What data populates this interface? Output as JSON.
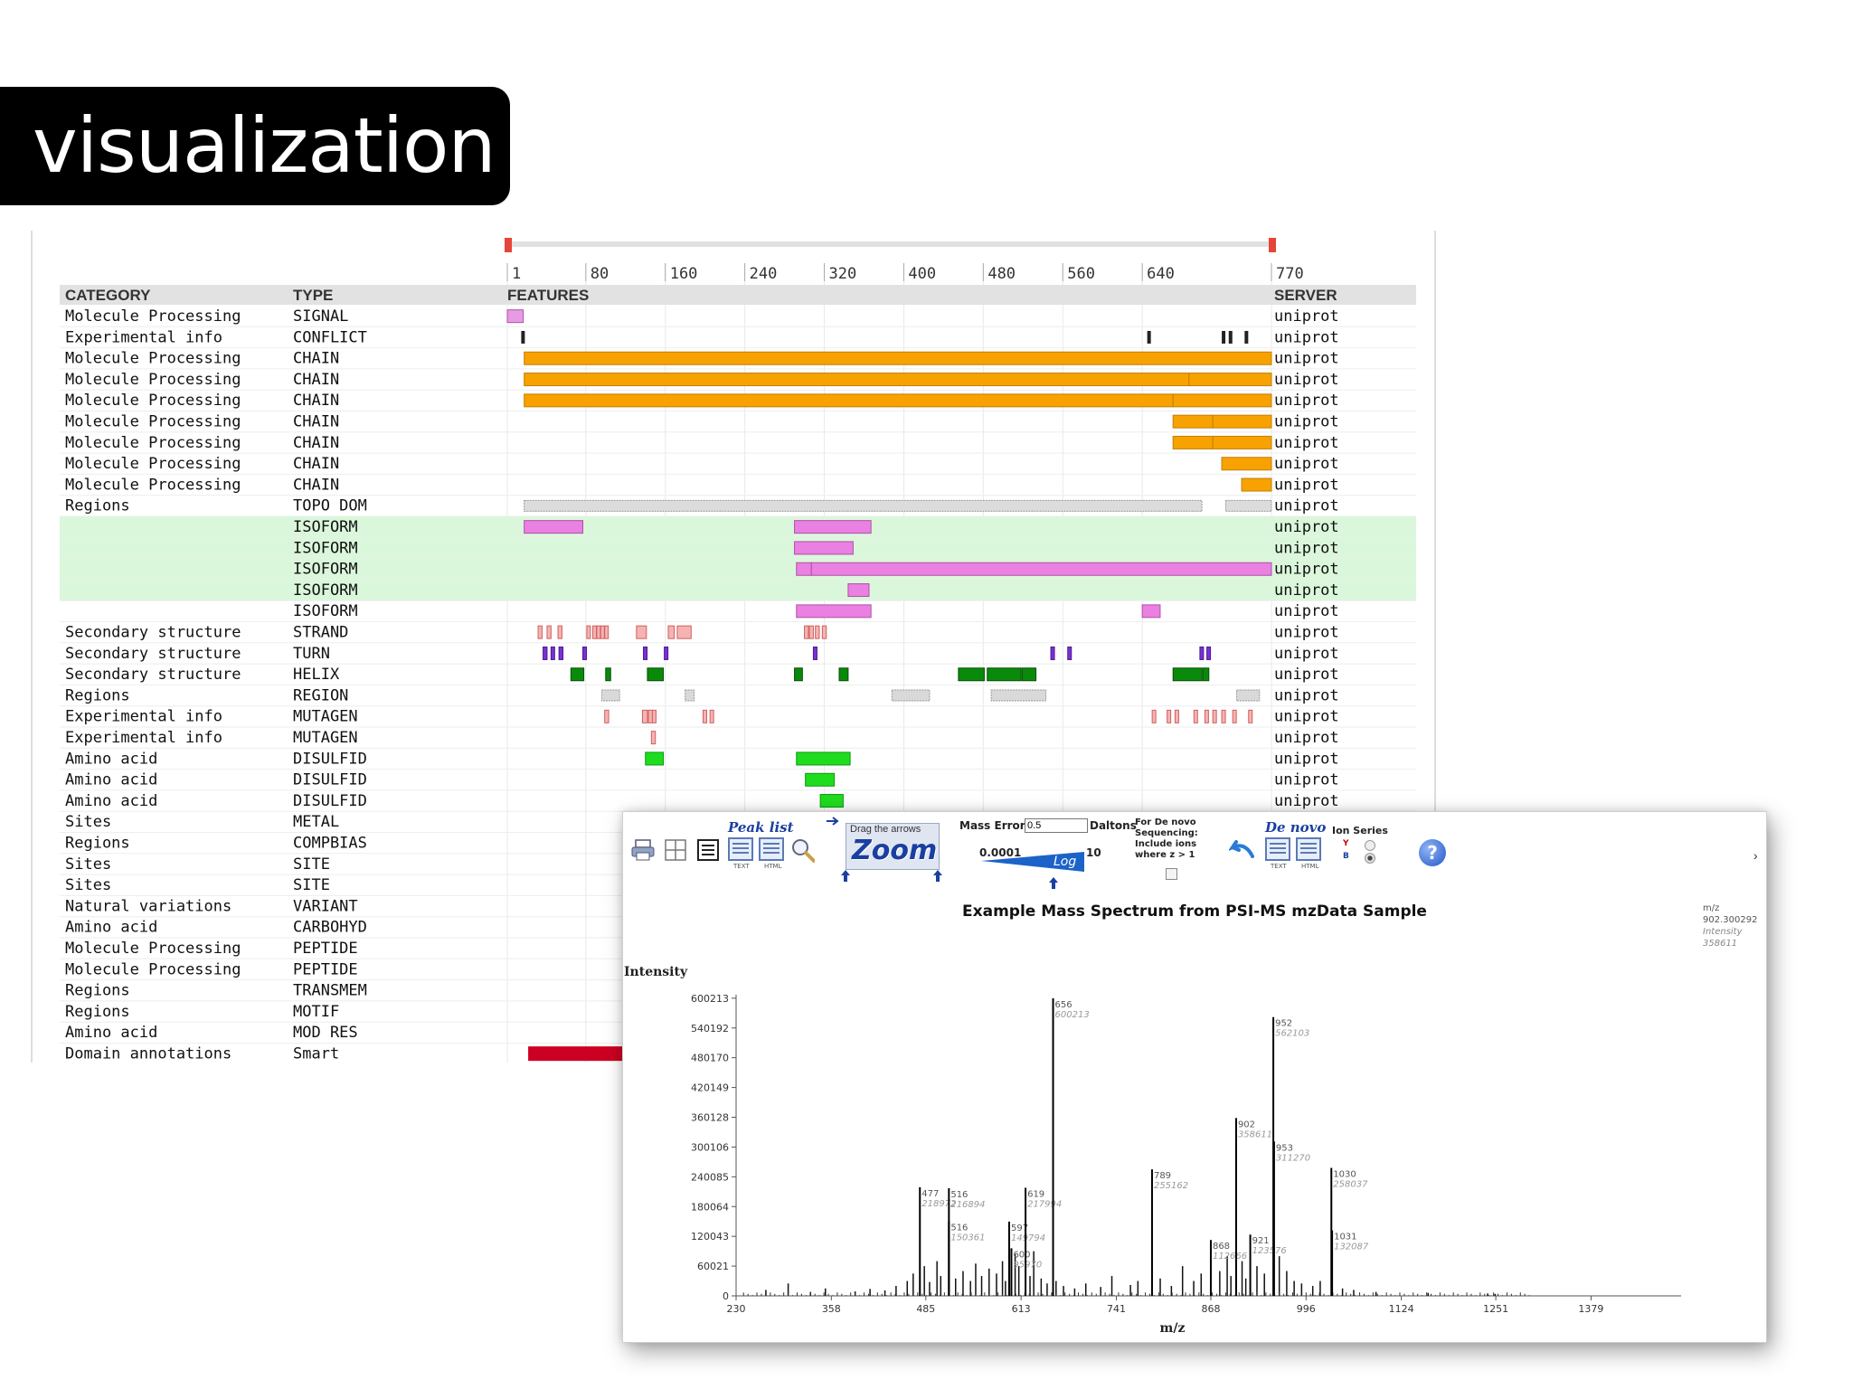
{
  "slide_title": "visualization",
  "features": {
    "headers": {
      "category": "CATEGORY",
      "type": "TYPE",
      "features": "FEATURES",
      "server": "SERVER"
    },
    "ruler_ticks": [
      "1",
      "80",
      "160",
      "240",
      "320",
      "400",
      "480",
      "560",
      "640",
      "770"
    ],
    "ruler_positions": [
      1,
      80,
      160,
      240,
      320,
      400,
      480,
      560,
      640,
      770
    ],
    "seq_length": 770,
    "rows": [
      {
        "category": "Molecule Processing",
        "type": "SIGNAL",
        "server": "uniprot",
        "style": "signal",
        "segs": [
          [
            1,
            17
          ]
        ]
      },
      {
        "category": "Experimental info",
        "type": "CONFLICT",
        "server": "uniprot",
        "style": "tick",
        "segs": [
          [
            15,
            18
          ],
          [
            645,
            648
          ],
          [
            720,
            722
          ],
          [
            727,
            729
          ],
          [
            743,
            745
          ]
        ]
      },
      {
        "category": "Molecule Processing",
        "type": "CHAIN",
        "server": "uniprot",
        "style": "chain",
        "segs": [
          [
            18,
            770
          ]
        ]
      },
      {
        "category": "Molecule Processing",
        "type": "CHAIN",
        "server": "uniprot",
        "style": "chain",
        "segs": [
          [
            18,
            687
          ],
          [
            687,
            770
          ]
        ]
      },
      {
        "category": "Molecule Processing",
        "type": "CHAIN",
        "server": "uniprot",
        "style": "chain",
        "segs": [
          [
            18,
            671
          ],
          [
            671,
            770
          ]
        ]
      },
      {
        "category": "Molecule Processing",
        "type": "CHAIN",
        "server": "uniprot",
        "style": "chain",
        "segs": [
          [
            671,
            711
          ],
          [
            711,
            770
          ]
        ]
      },
      {
        "category": "Molecule Processing",
        "type": "CHAIN",
        "server": "uniprot",
        "style": "chain",
        "segs": [
          [
            671,
            711
          ],
          [
            711,
            770
          ]
        ]
      },
      {
        "category": "Molecule Processing",
        "type": "CHAIN",
        "server": "uniprot",
        "style": "chain",
        "segs": [
          [
            720,
            770
          ]
        ]
      },
      {
        "category": "Molecule Processing",
        "type": "CHAIN",
        "server": "uniprot",
        "style": "chain",
        "segs": [
          [
            740,
            770
          ]
        ]
      },
      {
        "category": "Regions",
        "type": "TOPO DOM",
        "server": "uniprot",
        "style": "topo",
        "segs": [
          [
            18,
            700
          ],
          [
            724,
            770
          ]
        ]
      },
      {
        "category": "",
        "type": "ISOFORM",
        "server": "uniprot",
        "style": "isoform",
        "hl": true,
        "segs": [
          [
            18,
            77
          ],
          [
            290,
            367
          ]
        ]
      },
      {
        "category": "",
        "type": "ISOFORM",
        "server": "uniprot",
        "style": "isoform",
        "hl": true,
        "segs": [
          [
            290,
            349
          ]
        ]
      },
      {
        "category": "",
        "type": "ISOFORM",
        "server": "uniprot",
        "style": "isoform",
        "hl": true,
        "segs": [
          [
            292,
            307
          ],
          [
            307,
            770
          ]
        ]
      },
      {
        "category": "",
        "type": "ISOFORM",
        "server": "uniprot",
        "style": "isoform",
        "hl": true,
        "segs": [
          [
            344,
            365
          ]
        ]
      },
      {
        "category": "",
        "type": "ISOFORM",
        "server": "uniprot",
        "style": "isoform",
        "hl": false,
        "segs": [
          [
            292,
            367
          ],
          [
            640,
            658
          ]
        ]
      },
      {
        "category": "Secondary structure",
        "type": "STRAND",
        "server": "uniprot",
        "style": "strand",
        "segs": [
          [
            32,
            36
          ],
          [
            41,
            45
          ],
          [
            52,
            56
          ],
          [
            81,
            84
          ],
          [
            87,
            90
          ],
          [
            91,
            94
          ],
          [
            95,
            98
          ],
          [
            99,
            102
          ],
          [
            131,
            141
          ],
          [
            163,
            169
          ],
          [
            172,
            186
          ],
          [
            300,
            304
          ],
          [
            305,
            309
          ],
          [
            311,
            315
          ],
          [
            318,
            322
          ]
        ]
      },
      {
        "category": "Secondary structure",
        "type": "TURN",
        "server": "uniprot",
        "style": "turn",
        "segs": [
          [
            37,
            41
          ],
          [
            45,
            48
          ],
          [
            53,
            57
          ],
          [
            77,
            80
          ],
          [
            138,
            141
          ],
          [
            159,
            162
          ],
          [
            309,
            312
          ],
          [
            548,
            551
          ],
          [
            565,
            568
          ],
          [
            698,
            701
          ],
          [
            705,
            708
          ]
        ]
      },
      {
        "category": "Secondary structure",
        "type": "HELIX",
        "server": "uniprot",
        "style": "helix",
        "segs": [
          [
            65,
            78
          ],
          [
            100,
            105
          ],
          [
            142,
            158
          ],
          [
            290,
            298
          ],
          [
            335,
            344
          ],
          [
            455,
            481
          ],
          [
            484,
            518
          ],
          [
            519,
            533
          ],
          [
            671,
            700
          ],
          [
            701,
            707
          ]
        ]
      },
      {
        "category": "Regions",
        "type": "REGION",
        "server": "uniprot",
        "style": "region",
        "segs": [
          [
            96,
            114
          ],
          [
            180,
            189
          ],
          [
            388,
            426
          ],
          [
            488,
            543
          ],
          [
            735,
            758
          ]
        ]
      },
      {
        "category": "Experimental info",
        "type": "MUTAGEN",
        "server": "uniprot",
        "style": "mutagen",
        "segs": [
          [
            99,
            103
          ],
          [
            137,
            142
          ],
          [
            143,
            147
          ],
          [
            147,
            150
          ],
          [
            198,
            201
          ],
          [
            205,
            208
          ],
          [
            650,
            653
          ],
          [
            665,
            668
          ],
          [
            673,
            676
          ],
          [
            692,
            695
          ],
          [
            703,
            706
          ],
          [
            711,
            714
          ],
          [
            720,
            723
          ],
          [
            731,
            734
          ],
          [
            747,
            750
          ]
        ]
      },
      {
        "category": "Experimental info",
        "type": "MUTAGEN",
        "server": "uniprot",
        "style": "mutagen",
        "segs": [
          [
            146,
            150
          ]
        ]
      },
      {
        "category": "Amino acid",
        "type": "DISULFID",
        "server": "uniprot",
        "style": "disulfid",
        "segs": [
          [
            140,
            158
          ],
          [
            292,
            346
          ]
        ]
      },
      {
        "category": "Amino acid",
        "type": "DISULFID",
        "server": "uniprot",
        "style": "disulfid",
        "segs": [
          [
            301,
            330
          ]
        ]
      },
      {
        "category": "Amino acid",
        "type": "DISULFID",
        "server": "uniprot",
        "style": "disulfid",
        "segs": [
          [
            316,
            339
          ]
        ]
      },
      {
        "category": "Sites",
        "type": "METAL",
        "server": "",
        "style": "none",
        "segs": []
      },
      {
        "category": "Regions",
        "type": "COMPBIAS",
        "server": "",
        "style": "none",
        "segs": []
      },
      {
        "category": "Sites",
        "type": "SITE",
        "server": "",
        "style": "none",
        "segs": []
      },
      {
        "category": "Sites",
        "type": "SITE",
        "server": "",
        "style": "none",
        "segs": []
      },
      {
        "category": "Natural variations",
        "type": "VARIANT",
        "server": "",
        "style": "none",
        "segs": []
      },
      {
        "category": "Amino acid",
        "type": "CARBOHYD",
        "server": "",
        "style": "none",
        "segs": []
      },
      {
        "category": "Molecule Processing",
        "type": "PEPTIDE",
        "server": "",
        "style": "none",
        "segs": []
      },
      {
        "category": "Molecule Processing",
        "type": "PEPTIDE",
        "server": "",
        "style": "none",
        "segs": []
      },
      {
        "category": "Regions",
        "type": "TRANSMEM",
        "server": "",
        "style": "none",
        "segs": []
      },
      {
        "category": "Regions",
        "type": "MOTIF",
        "server": "",
        "style": "none",
        "segs": []
      },
      {
        "category": "Amino acid",
        "type": "MOD RES",
        "server": "",
        "style": "none",
        "segs": []
      },
      {
        "category": "Domain annotations",
        "type": "Smart",
        "server": "",
        "style": "smart",
        "segs": [
          [
            22,
            130
          ]
        ]
      }
    ],
    "colors": {
      "signal": "#e79be3",
      "chain": "#f7a200",
      "tick": "#222222",
      "topo": "#dcdcdc",
      "isoform": "#ea80e2",
      "strand": "#f5b3b3",
      "turn": "#7c2fd8",
      "helix": "#0a8a0a",
      "region": "#d9d9d9",
      "mutagen": "#f5b3b3",
      "disulfid": "#1fdc1f",
      "smart": "#cc0022",
      "highlight": "#dbf7db"
    }
  },
  "spectrum_window": {
    "toolbar": {
      "peak_list": "Peak list",
      "text_sub": "TEXT",
      "html_sub": "HTML",
      "drag_hint": "Drag the arrows",
      "zoom": "Zoom",
      "mass_error_label": "Mass Error",
      "mass_error_value": "0.5",
      "daltons": "Daltons",
      "scale_min": "0.0001",
      "scale_max": "10",
      "log_label": "Log",
      "de_novo_hint_1": "For De novo",
      "de_novo_hint_2": "Sequencing:",
      "de_novo_hint_3": "Include ions",
      "de_novo_hint_4": "where z > 1",
      "de_novo": "De novo",
      "ion_series": "Ion Series",
      "ion_y": "Y",
      "ion_b": "B",
      "help": "?",
      "icons": [
        "printer-icon",
        "grid-icon",
        "list-icon",
        "text-export-icon",
        "html-export-icon",
        "magnifier-icon",
        "back-arrow-icon"
      ]
    },
    "readout": {
      "label": "m/z",
      "value": "902.300292",
      "intensity_label": "Intensity",
      "intensity_value": "358611"
    }
  },
  "chart_data": {
    "type": "bar",
    "title": "Example Mass Spectrum from PSI-MS mzData Sample",
    "xlabel": "m/z",
    "ylabel": "Intensity",
    "xlim": [
      230,
      1500
    ],
    "ylim": [
      0,
      620000
    ],
    "xticks": [
      230,
      358,
      485,
      613,
      741,
      868,
      996,
      1124,
      1251,
      1379
    ],
    "yticks": [
      0,
      60021,
      120043,
      180064,
      240085,
      300106,
      360128,
      420149,
      480170,
      540192,
      600213
    ],
    "peaks": [
      {
        "mz": 477,
        "intensity": 218972,
        "label": "477",
        "label2": "218972"
      },
      {
        "mz": 516,
        "intensity": 216894,
        "label": "516",
        "label2": "216894"
      },
      {
        "mz": 516,
        "intensity": 150361,
        "label": "516",
        "label2": "150361"
      },
      {
        "mz": 597,
        "intensity": 149794,
        "label": "597",
        "label2": "149794"
      },
      {
        "mz": 600,
        "intensity": 95970,
        "label": "600",
        "label2": "95970"
      },
      {
        "mz": 619,
        "intensity": 217994,
        "label": "619",
        "label2": "217994"
      },
      {
        "mz": 656,
        "intensity": 600213,
        "label": "656",
        "label2": "600213"
      },
      {
        "mz": 789,
        "intensity": 255162,
        "label": "789",
        "label2": "255162"
      },
      {
        "mz": 868,
        "intensity": 112666,
        "label": "868",
        "label2": "112666"
      },
      {
        "mz": 902,
        "intensity": 358611,
        "label": "902",
        "label2": "358611"
      },
      {
        "mz": 921,
        "intensity": 123576,
        "label": "921",
        "label2": "123576"
      },
      {
        "mz": 952,
        "intensity": 562103,
        "label": "952",
        "label2": "562103"
      },
      {
        "mz": 953,
        "intensity": 311270,
        "label": "953",
        "label2": "311270"
      },
      {
        "mz": 1030,
        "intensity": 258037,
        "label": "1030",
        "label2": "258037"
      },
      {
        "mz": 1031,
        "intensity": 132087,
        "label": "1031",
        "label2": "132087"
      }
    ],
    "minor_peaks": [
      [
        270,
        12000
      ],
      [
        300,
        25000
      ],
      [
        330,
        8000
      ],
      [
        350,
        15000
      ],
      [
        390,
        9000
      ],
      [
        410,
        14000
      ],
      [
        430,
        11000
      ],
      [
        445,
        20000
      ],
      [
        460,
        30000
      ],
      [
        468,
        45000
      ],
      [
        483,
        60000
      ],
      [
        490,
        28000
      ],
      [
        500,
        70000
      ],
      [
        505,
        40000
      ],
      [
        525,
        35000
      ],
      [
        535,
        50000
      ],
      [
        545,
        30000
      ],
      [
        552,
        65000
      ],
      [
        560,
        40000
      ],
      [
        570,
        55000
      ],
      [
        580,
        45000
      ],
      [
        588,
        70000
      ],
      [
        592,
        30000
      ],
      [
        605,
        85000
      ],
      [
        610,
        60000
      ],
      [
        625,
        40000
      ],
      [
        630,
        90000
      ],
      [
        640,
        35000
      ],
      [
        648,
        25000
      ],
      [
        660,
        30000
      ],
      [
        670,
        20000
      ],
      [
        685,
        15000
      ],
      [
        700,
        25000
      ],
      [
        720,
        18000
      ],
      [
        735,
        40000
      ],
      [
        760,
        22000
      ],
      [
        770,
        30000
      ],
      [
        800,
        35000
      ],
      [
        815,
        20000
      ],
      [
        830,
        60000
      ],
      [
        845,
        30000
      ],
      [
        855,
        45000
      ],
      [
        880,
        50000
      ],
      [
        890,
        80000
      ],
      [
        895,
        40000
      ],
      [
        910,
        70000
      ],
      [
        915,
        35000
      ],
      [
        930,
        60000
      ],
      [
        940,
        45000
      ],
      [
        960,
        80000
      ],
      [
        970,
        50000
      ],
      [
        980,
        30000
      ],
      [
        990,
        25000
      ],
      [
        1005,
        20000
      ],
      [
        1015,
        30000
      ],
      [
        1045,
        15000
      ],
      [
        1060,
        12000
      ],
      [
        1090,
        8000
      ],
      [
        1160,
        6000
      ],
      [
        1240,
        5000
      ],
      [
        1250,
        4000
      ]
    ]
  }
}
